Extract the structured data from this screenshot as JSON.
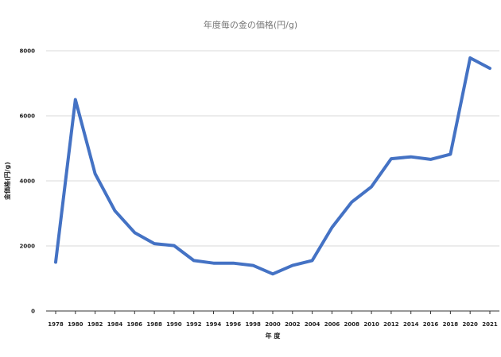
{
  "chart_data": {
    "type": "line",
    "title": "年度毎の金の価格(円/g)",
    "xlabel": "年 度",
    "ylabel": "金価格(円/g)",
    "ylim": [
      0,
      8000
    ],
    "yticks": [
      0,
      2000,
      4000,
      6000,
      8000
    ],
    "grid": true,
    "line_color": "#4472C4",
    "categories": [
      "1978",
      "1980",
      "1982",
      "1984",
      "1986",
      "1988",
      "1990",
      "1992",
      "1994",
      "1996",
      "1998",
      "2000",
      "2002",
      "2004",
      "2006",
      "2008",
      "2010",
      "2012",
      "2014",
      "2016",
      "2018",
      "2020",
      "2021"
    ],
    "series": [
      {
        "values": [
          1500,
          6500,
          4220,
          3080,
          2410,
          2070,
          2010,
          1550,
          1470,
          1470,
          1400,
          1140,
          1400,
          1550,
          2570,
          3350,
          3820,
          4680,
          4740,
          4660,
          4820,
          7780,
          7460
        ]
      }
    ]
  }
}
